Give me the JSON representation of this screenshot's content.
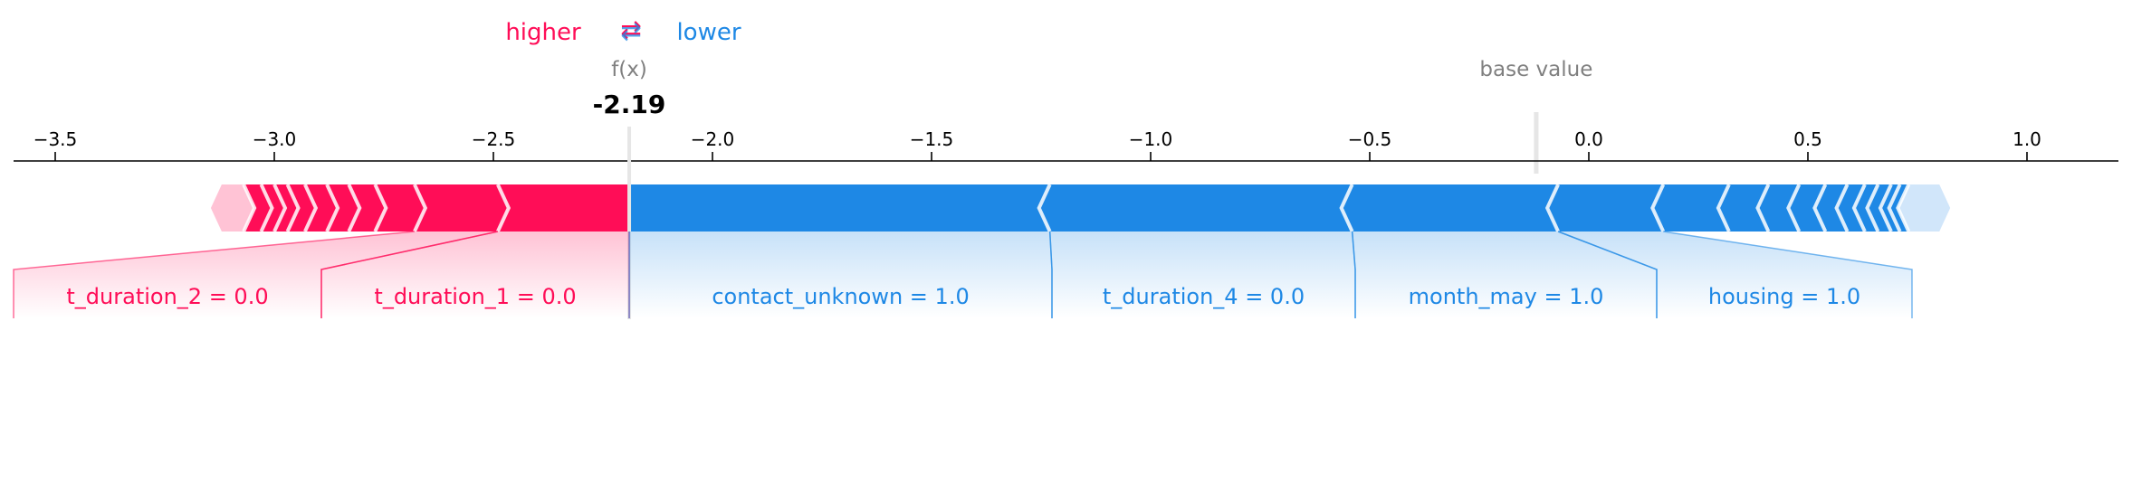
{
  "legend": {
    "higher_label": "higher",
    "arrow_symbol": "⇄",
    "lower_label": "lower"
  },
  "colors": {
    "higher": "#ff0d57",
    "higher_light": "#ffc3d5",
    "lower": "#1e88e5",
    "lower_light": "#d1e6fa",
    "muted_text": "#808080"
  },
  "chart_data": {
    "type": "force",
    "fx_label": "f(x)",
    "fx_value": -2.19,
    "fx_value_label": "-2.19",
    "base_value_label": "base value",
    "base_value": -0.12,
    "x_range": [
      -3.6,
      1.22
    ],
    "x_ticks": [
      -3.5,
      -3.0,
      -2.5,
      -2.0,
      -1.5,
      -1.0,
      -0.5,
      0.0,
      0.5,
      1.0
    ],
    "x_tick_labels": [
      "−3.5",
      "−3.0",
      "−2.5",
      "−2.0",
      "−1.5",
      "−1.0",
      "−0.5",
      "0.0",
      "0.5",
      "1.0"
    ],
    "higher_segments": [
      {
        "from": -3.12,
        "to": -3.07,
        "light": true
      },
      {
        "from": -3.07,
        "to": -3.03
      },
      {
        "from": -3.03,
        "to": -3.0
      },
      {
        "from": -3.0,
        "to": -2.97
      },
      {
        "from": -2.97,
        "to": -2.93
      },
      {
        "from": -2.93,
        "to": -2.88
      },
      {
        "from": -2.88,
        "to": -2.83
      },
      {
        "from": -2.83,
        "to": -2.77
      },
      {
        "from": -2.77,
        "to": -2.68
      },
      {
        "from": -2.68,
        "to": -2.49
      },
      {
        "from": -2.49,
        "to": -2.19
      }
    ],
    "lower_segments": [
      {
        "from": -2.19,
        "to": -1.23
      },
      {
        "from": -1.23,
        "to": -0.54
      },
      {
        "from": -0.54,
        "to": -0.07
      },
      {
        "from": -0.07,
        "to": 0.17
      },
      {
        "from": 0.17,
        "to": 0.32
      },
      {
        "from": 0.32,
        "to": 0.41
      },
      {
        "from": 0.41,
        "to": 0.48
      },
      {
        "from": 0.48,
        "to": 0.54
      },
      {
        "from": 0.54,
        "to": 0.59
      },
      {
        "from": 0.59,
        "to": 0.63
      },
      {
        "from": 0.63,
        "to": 0.66
      },
      {
        "from": 0.66,
        "to": 0.69
      },
      {
        "from": 0.69,
        "to": 0.71
      },
      {
        "from": 0.71,
        "to": 0.73
      },
      {
        "from": 0.73,
        "to": 0.8,
        "light": true
      }
    ],
    "labels": [
      {
        "feature": "t_duration_2 = 0.0",
        "effect": "higher",
        "from": -2.68,
        "to": -2.49
      },
      {
        "feature": "t_duration_1 = 0.0",
        "effect": "higher",
        "from": -2.49,
        "to": -2.19
      },
      {
        "feature": "contact_unknown = 1.0",
        "effect": "lower",
        "from": -2.19,
        "to": -1.23
      },
      {
        "feature": "t_duration_4 = 0.0",
        "effect": "lower",
        "from": -1.23,
        "to": -0.54
      },
      {
        "feature": "month_may = 1.0",
        "effect": "lower",
        "from": -0.54,
        "to": -0.07
      },
      {
        "feature": "housing = 1.0",
        "effect": "lower",
        "from": -0.07,
        "to": 0.17
      }
    ]
  }
}
